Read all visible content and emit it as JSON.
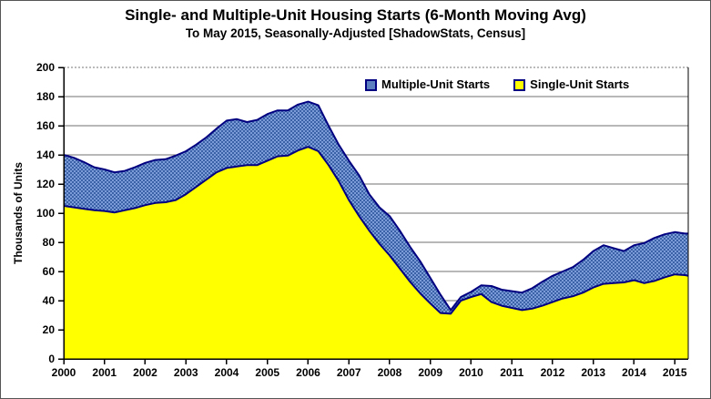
{
  "header": {
    "title": "Single- and Multiple-Unit Housing Starts (6-Month Moving Avg)",
    "subtitle": "To May 2015, Seasonally-Adjusted [ShadowStats, Census]"
  },
  "legend": [
    {
      "label": "Multiple-Unit Starts",
      "color": "#5b7fbf"
    },
    {
      "label": "Single-Unit Starts",
      "color": "#ffff00"
    }
  ],
  "colors": {
    "single_fill": "#ffff00",
    "multiple_fill_base": "#7b9bd8",
    "multiple_fill_dot": "#3b62a6",
    "series_stroke": "#000080",
    "grid": "#707070",
    "axis": "#000000",
    "text": "#000000"
  },
  "chart_data": {
    "type": "area",
    "stacked": true,
    "title": "Single- and Multiple-Unit Housing Starts (6-Month Moving Avg)",
    "subtitle": "To May 2015, Seasonally-Adjusted [ShadowStats, Census]",
    "xlabel": "",
    "ylabel": "Thousands of Units",
    "ylim": [
      0,
      200
    ],
    "yticks": [
      0,
      20,
      40,
      60,
      80,
      100,
      120,
      140,
      160,
      180,
      200
    ],
    "xlim": [
      2000,
      2015.33
    ],
    "xticks": [
      2000,
      2001,
      2002,
      2003,
      2004,
      2005,
      2006,
      2007,
      2008,
      2009,
      2010,
      2011,
      2012,
      2013,
      2014,
      2015
    ],
    "grid": "horizontal",
    "legend_position": "top-inside",
    "x": [
      2000.0,
      2000.25,
      2000.5,
      2000.75,
      2001.0,
      2001.25,
      2001.5,
      2001.75,
      2002.0,
      2002.25,
      2002.5,
      2002.75,
      2003.0,
      2003.25,
      2003.5,
      2003.75,
      2004.0,
      2004.25,
      2004.5,
      2004.75,
      2005.0,
      2005.25,
      2005.5,
      2005.75,
      2006.0,
      2006.25,
      2006.5,
      2006.75,
      2007.0,
      2007.25,
      2007.5,
      2007.75,
      2008.0,
      2008.25,
      2008.5,
      2008.75,
      2009.0,
      2009.25,
      2009.5,
      2009.75,
      2010.0,
      2010.25,
      2010.5,
      2010.75,
      2011.0,
      2011.25,
      2011.5,
      2011.75,
      2012.0,
      2012.25,
      2012.5,
      2012.75,
      2013.0,
      2013.25,
      2013.5,
      2013.75,
      2014.0,
      2014.25,
      2014.5,
      2014.75,
      2015.0,
      2015.25,
      2015.33
    ],
    "series": [
      {
        "name": "Single-Unit Starts",
        "values": [
          105,
          104,
          103,
          102,
          101.5,
          100.5,
          102,
          103.5,
          105.5,
          107,
          107.5,
          109,
          113,
          118,
          123,
          128,
          131,
          132,
          133,
          133,
          136,
          139,
          139.5,
          143,
          145.5,
          142.5,
          133,
          122,
          109,
          98,
          88,
          79,
          71,
          62,
          53,
          45,
          38,
          31.5,
          31,
          40,
          42.5,
          44.5,
          39,
          36.5,
          35,
          33.5,
          34.5,
          36.5,
          39,
          41.5,
          43,
          45.5,
          49,
          51.5,
          52,
          52.5,
          54,
          52,
          53.5,
          56,
          58,
          57.5,
          57
        ]
      },
      {
        "name": "Multiple-Unit Starts",
        "values": [
          35,
          34,
          32,
          29.5,
          28.5,
          27.5,
          27,
          28,
          29,
          29.5,
          29.5,
          30.5,
          29.5,
          29,
          29,
          30,
          32.5,
          32.5,
          29.5,
          31,
          32,
          31.5,
          31,
          31.5,
          31,
          31.5,
          27,
          25,
          27,
          28,
          25,
          25,
          27,
          26,
          24,
          22,
          17.5,
          12.5,
          2.5,
          2.5,
          3.5,
          6,
          11,
          11,
          11.5,
          12,
          14,
          16.5,
          18,
          18.5,
          20,
          22.5,
          25,
          26.5,
          24,
          21.5,
          24,
          27.5,
          29.5,
          29.5,
          29,
          28.5,
          29
        ]
      }
    ]
  }
}
